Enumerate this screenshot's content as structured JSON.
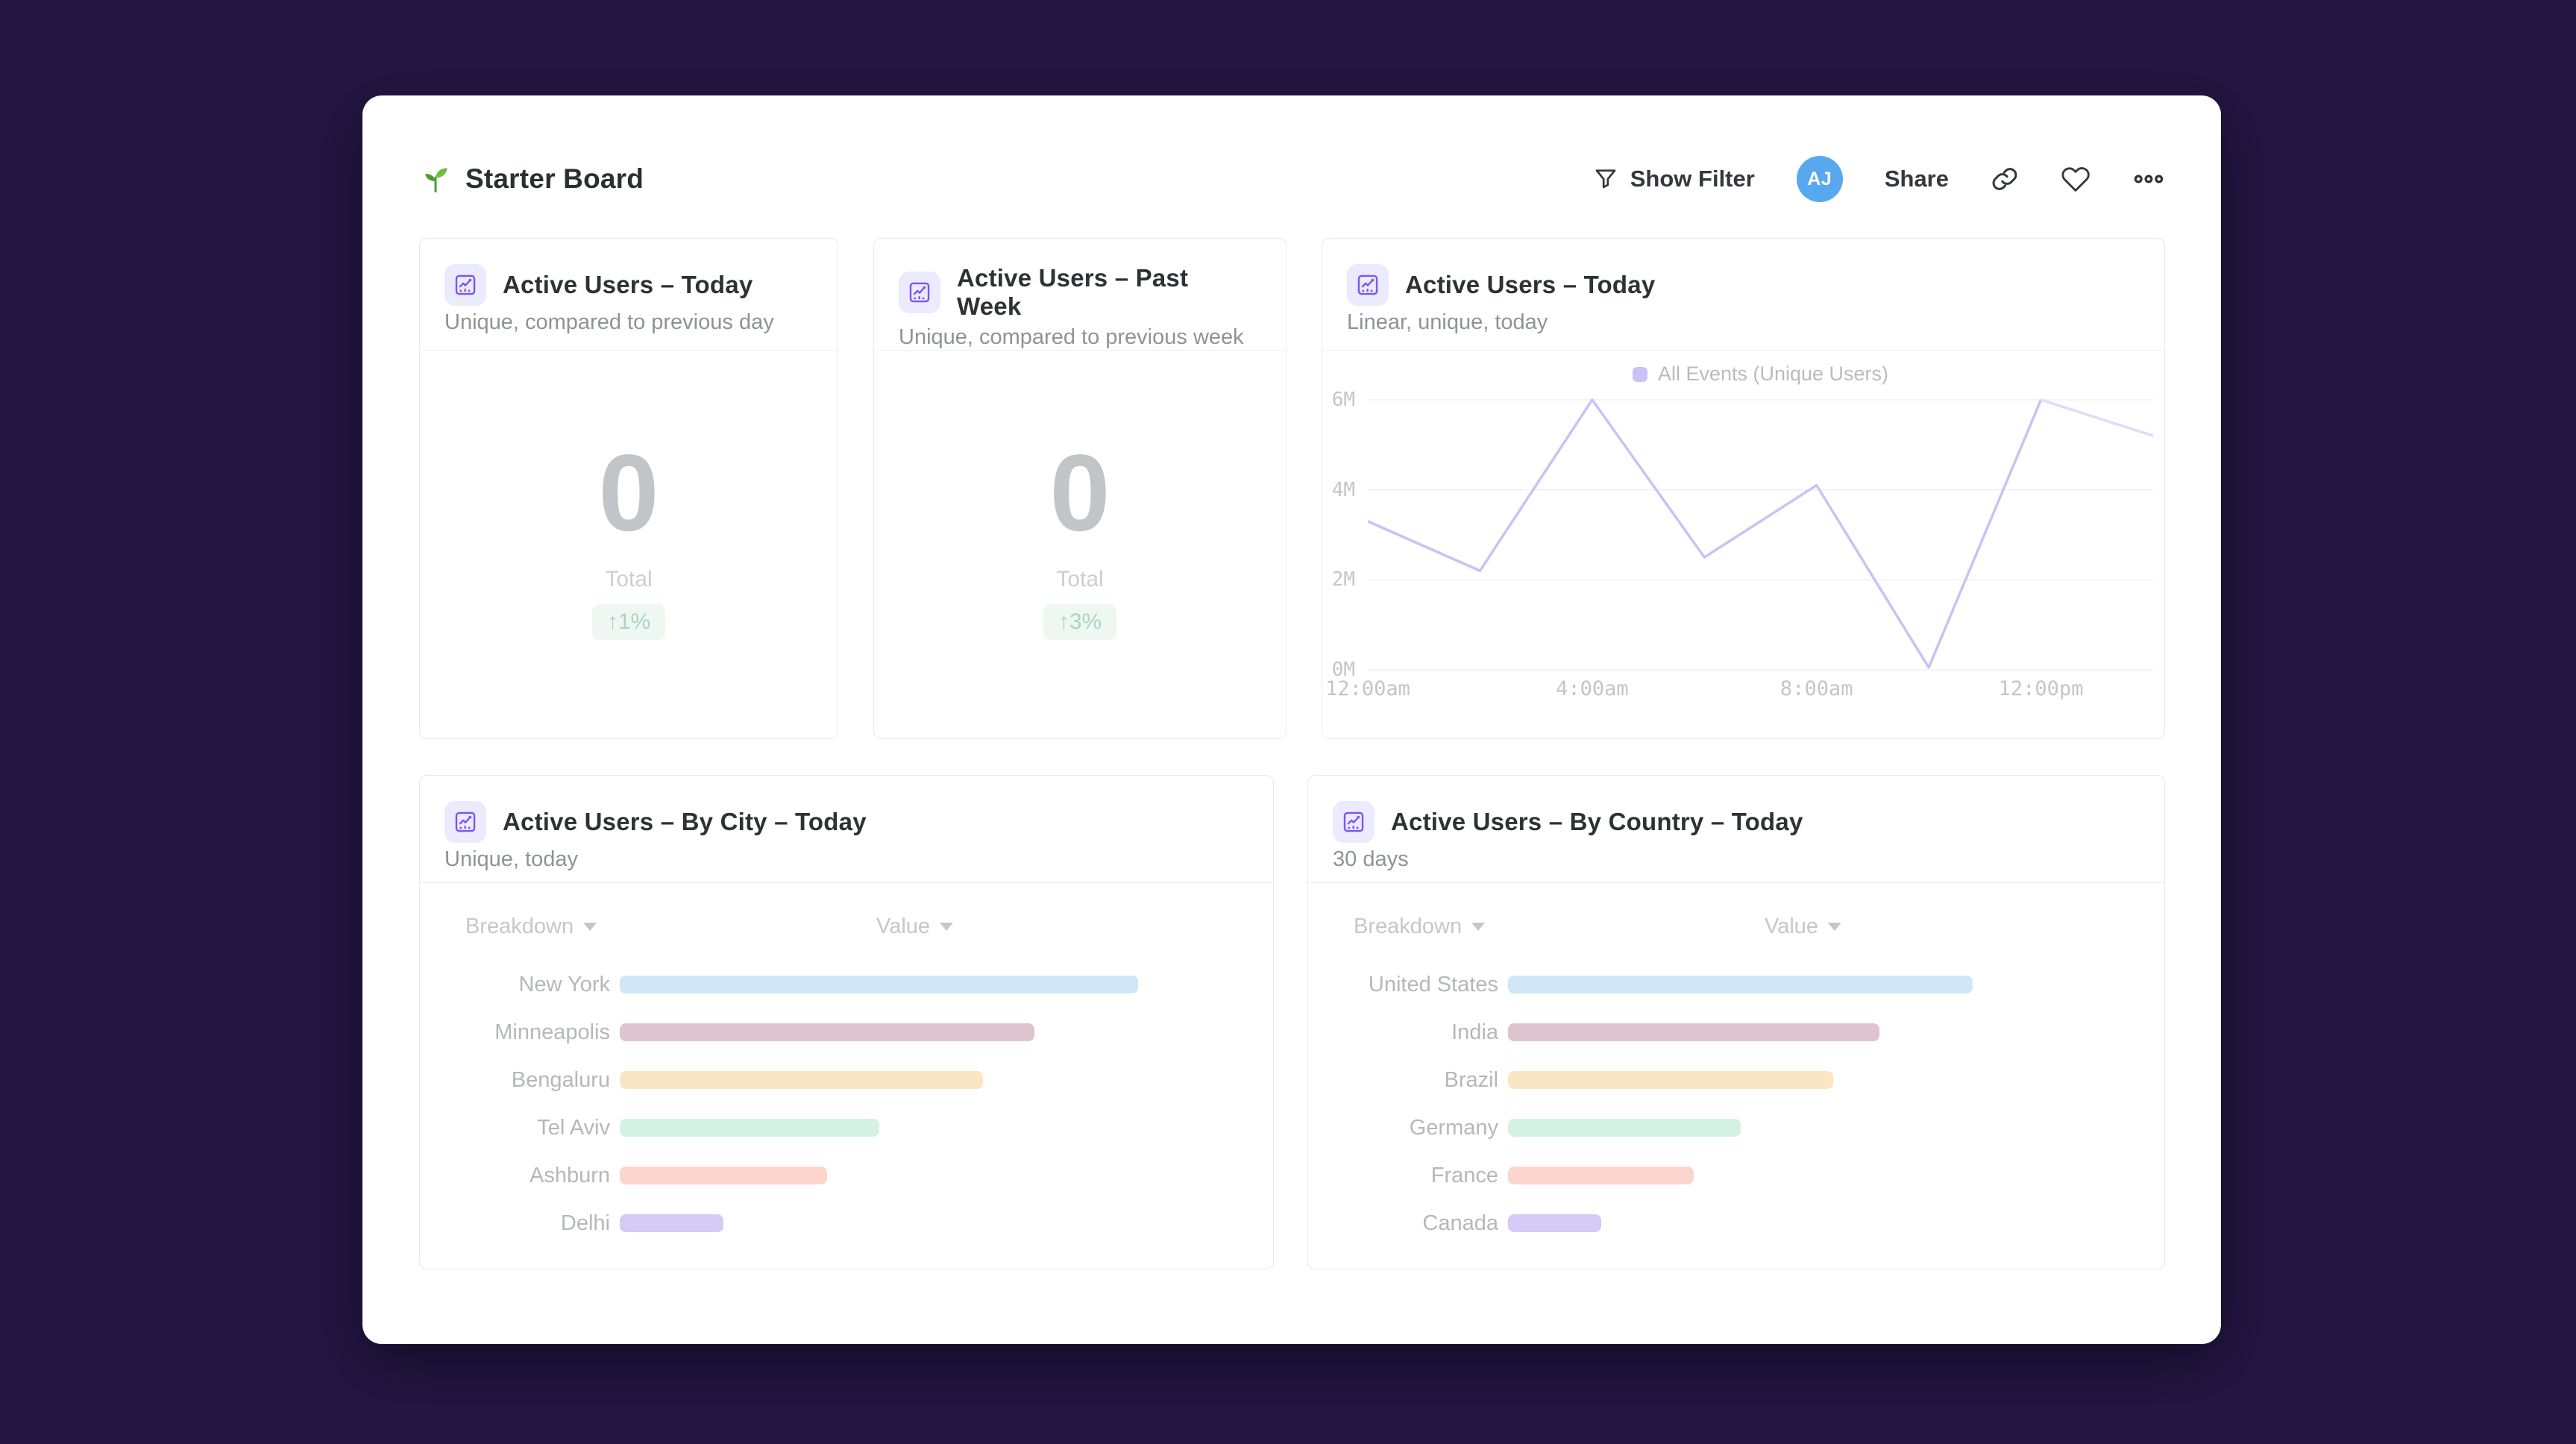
{
  "colors": {
    "background": "#231643",
    "surface": "#ffffff",
    "accent_purple": "#7a56f2",
    "avatar_blue": "#58a8f0",
    "positive_text": "#abd5c1",
    "positive_bg": "#eff7f2"
  },
  "header": {
    "title": "Starter Board",
    "title_icon": "seedling-icon",
    "show_filter_label": "Show Filter",
    "share_label": "Share",
    "avatar_initials": "AJ",
    "icon_buttons": [
      "link-icon",
      "heart-icon",
      "ellipsis-icon"
    ]
  },
  "cards": {
    "today": {
      "title": "Active Users – Today",
      "subtitle": "Unique, compared to previous day",
      "value": "0",
      "value_label": "Total",
      "delta": "↑1%"
    },
    "past_week": {
      "title": "Active Users – Past Week",
      "subtitle": "Unique, compared to previous week",
      "value": "0",
      "value_label": "Total",
      "delta": "↑3%"
    },
    "line": {
      "title": "Active Users – Today",
      "subtitle": "Linear, unique, today",
      "legend": "All Events (Unique Users)"
    },
    "by_city": {
      "title": "Active Users – By City – Today",
      "subtitle": "Unique, today",
      "columns": [
        "Breakdown",
        "Value"
      ]
    },
    "by_country": {
      "title": "Active Users – By Country – Today",
      "subtitle": "30 days",
      "columns": [
        "Breakdown",
        "Value"
      ]
    }
  },
  "chart_data": [
    {
      "type": "line",
      "title": "Active Users – Today",
      "series": [
        {
          "name": "All Events (Unique Users)",
          "x_hours": [
            0,
            2,
            4,
            6,
            8,
            10,
            12,
            14
          ],
          "values_millions": [
            3.3,
            2.2,
            6.0,
            2.5,
            4.1,
            0.05,
            6.0,
            5.2
          ]
        }
      ],
      "xlim_hours": [
        0,
        14
      ],
      "ylim_millions": [
        0,
        6
      ],
      "y_ticks": [
        {
          "value": 0,
          "label": "0M"
        },
        {
          "value": 2,
          "label": "2M"
        },
        {
          "value": 4,
          "label": "4M"
        },
        {
          "value": 6,
          "label": "6M"
        }
      ],
      "x_ticks": [
        {
          "hour": 0,
          "label": "12:00am"
        },
        {
          "hour": 4,
          "label": "4:00am"
        },
        {
          "hour": 8,
          "label": "8:00am"
        },
        {
          "hour": 12,
          "label": "12:00pm"
        }
      ],
      "grid": true,
      "legend_position": "top",
      "line_color": "#c9c2f4",
      "line_color_final_segment": "#dfdbf9"
    },
    {
      "type": "bar",
      "orientation": "horizontal",
      "title": "Active Users – By City – Today",
      "categories": [
        "New York",
        "Minneapolis",
        "Bengaluru",
        "Tel Aviv",
        "Ashburn",
        "Delhi"
      ],
      "values_relative": [
        100,
        80,
        70,
        50,
        40,
        20
      ],
      "colors": [
        "#cfe6f8",
        "#dec4cf",
        "#fae6c2",
        "#d4f2e4",
        "#fcd6cd",
        "#d5caf6"
      ]
    },
    {
      "type": "bar",
      "orientation": "horizontal",
      "title": "Active Users – By Country – Today",
      "categories": [
        "United States",
        "India",
        "Brazil",
        "Germany",
        "France",
        "Canada"
      ],
      "values_relative": [
        100,
        80,
        70,
        50,
        40,
        20
      ],
      "colors": [
        "#cfe6f8",
        "#dec4cf",
        "#fae6c2",
        "#d4f2e4",
        "#fcd6cd",
        "#d5caf6"
      ]
    }
  ]
}
